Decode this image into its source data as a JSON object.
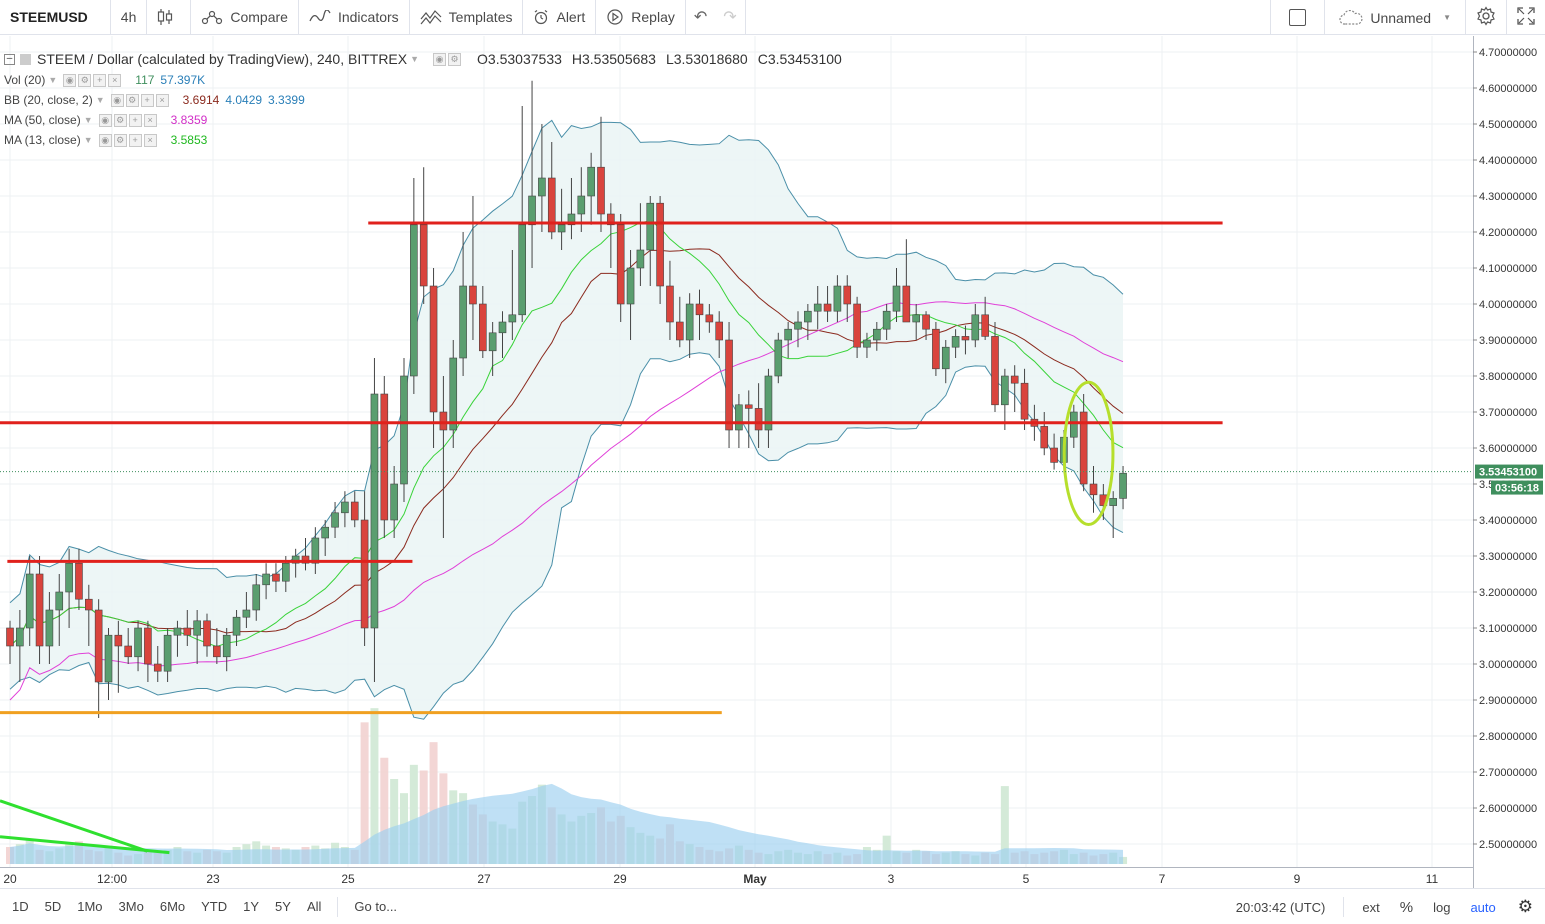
{
  "toolbar": {
    "symbol": "STEEMUSD",
    "interval": "4h",
    "compare": "Compare",
    "indicators": "Indicators",
    "templates": "Templates",
    "alert": "Alert",
    "replay": "Replay",
    "layout_name": "Unnamed"
  },
  "legend": {
    "title": "STEEM / Dollar (calculated by TradingView), 240, BITTREX",
    "ohlc": {
      "o": "O3.53037533",
      "h": "H3.53505683",
      "l": "L3.53018680",
      "c": "C3.53453100"
    },
    "vol": {
      "label": "Vol (20)",
      "v1": "117",
      "v2": "57.397K"
    },
    "bb": {
      "label": "BB (20, close, 2)",
      "v1": "3.6914",
      "v2": "4.0429",
      "v3": "3.3399"
    },
    "ma50": {
      "label": "MA (50, close)",
      "v1": "3.8359"
    },
    "ma13": {
      "label": "MA (13, close)",
      "v1": "3.5853"
    }
  },
  "colors": {
    "up": "#5a9e6f",
    "down": "#d9443d",
    "bb_fill": "#eaf4f4",
    "bb_line": "#4a8fa8",
    "ma20": "#8b2a1e",
    "ma50": "#e040d8",
    "ma13": "#39d339",
    "hline_red": "#e0211c",
    "hline_orange": "#f0a020",
    "trend_green": "#2fe02f",
    "ellipse": "#b6df2c",
    "price_tag": "#3f8f5e"
  },
  "chart_data": {
    "type": "candlestick",
    "price_range": [
      2.43,
      4.72
    ],
    "price_ticks": [
      "4.70000000",
      "4.60000000",
      "4.50000000",
      "4.40000000",
      "4.30000000",
      "4.20000000",
      "4.10000000",
      "4.00000000",
      "3.90000000",
      "3.80000000",
      "3.70000000",
      "3.60000000",
      "3.50000000",
      "3.40000000",
      "3.30000000",
      "3.20000000",
      "3.10000000",
      "3.00000000",
      "2.90000000",
      "2.80000000",
      "2.70000000",
      "2.60000000",
      "2.50000000"
    ],
    "x_labels": [
      "20",
      "12:00",
      "23",
      "25",
      "27",
      "29",
      "May",
      "3",
      "5",
      "7",
      "9",
      "11"
    ],
    "last_price": "3.53453100",
    "countdown": "03:56:18",
    "candles": [
      [
        3.1,
        3.12,
        3.0,
        3.05
      ],
      [
        3.05,
        3.15,
        2.95,
        3.1
      ],
      [
        3.1,
        3.3,
        3.05,
        3.25
      ],
      [
        3.25,
        3.3,
        3.0,
        3.05
      ],
      [
        3.05,
        3.2,
        3.0,
        3.15
      ],
      [
        3.15,
        3.25,
        3.05,
        3.2
      ],
      [
        3.2,
        3.32,
        3.1,
        3.28
      ],
      [
        3.28,
        3.32,
        3.15,
        3.18
      ],
      [
        3.18,
        3.22,
        3.05,
        3.15
      ],
      [
        3.15,
        3.18,
        2.85,
        2.95
      ],
      [
        2.95,
        3.1,
        2.9,
        3.08
      ],
      [
        3.08,
        3.12,
        2.92,
        3.05
      ],
      [
        3.05,
        3.1,
        3.0,
        3.02
      ],
      [
        3.02,
        3.12,
        2.98,
        3.1
      ],
      [
        3.1,
        3.12,
        2.95,
        3.0
      ],
      [
        3.0,
        3.05,
        2.95,
        2.98
      ],
      [
        2.98,
        3.1,
        2.95,
        3.08
      ],
      [
        3.08,
        3.12,
        3.02,
        3.1
      ],
      [
        3.1,
        3.15,
        3.05,
        3.08
      ],
      [
        3.08,
        3.15,
        3.0,
        3.12
      ],
      [
        3.12,
        3.14,
        3.02,
        3.05
      ],
      [
        3.05,
        3.1,
        3.0,
        3.02
      ],
      [
        3.02,
        3.1,
        2.98,
        3.08
      ],
      [
        3.08,
        3.15,
        3.05,
        3.13
      ],
      [
        3.13,
        3.2,
        3.1,
        3.15
      ],
      [
        3.15,
        3.25,
        3.12,
        3.22
      ],
      [
        3.22,
        3.28,
        3.18,
        3.25
      ],
      [
        3.25,
        3.28,
        3.2,
        3.23
      ],
      [
        3.23,
        3.3,
        3.2,
        3.28
      ],
      [
        3.28,
        3.32,
        3.24,
        3.3
      ],
      [
        3.3,
        3.35,
        3.26,
        3.28
      ],
      [
        3.28,
        3.38,
        3.25,
        3.35
      ],
      [
        3.35,
        3.4,
        3.3,
        3.38
      ],
      [
        3.38,
        3.45,
        3.35,
        3.42
      ],
      [
        3.42,
        3.48,
        3.38,
        3.45
      ],
      [
        3.45,
        3.48,
        3.38,
        3.4
      ],
      [
        3.4,
        3.48,
        3.05,
        3.1
      ],
      [
        3.1,
        3.85,
        2.95,
        3.75
      ],
      [
        3.75,
        3.8,
        3.35,
        3.4
      ],
      [
        3.4,
        3.55,
        3.35,
        3.5
      ],
      [
        3.5,
        3.85,
        3.45,
        3.8
      ],
      [
        3.8,
        4.35,
        3.75,
        4.22
      ],
      [
        4.22,
        4.38,
        4.0,
        4.05
      ],
      [
        4.05,
        4.1,
        3.6,
        3.7
      ],
      [
        3.7,
        3.8,
        3.35,
        3.65
      ],
      [
        3.65,
        3.9,
        3.6,
        3.85
      ],
      [
        3.85,
        4.2,
        3.8,
        4.05
      ],
      [
        4.05,
        4.3,
        3.9,
        4.0
      ],
      [
        4.0,
        4.05,
        3.85,
        3.87
      ],
      [
        3.87,
        3.95,
        3.8,
        3.92
      ],
      [
        3.92,
        3.98,
        3.85,
        3.95
      ],
      [
        3.95,
        4.15,
        3.9,
        3.97
      ],
      [
        3.97,
        4.55,
        3.95,
        4.22
      ],
      [
        4.22,
        4.62,
        4.1,
        4.3
      ],
      [
        4.3,
        4.5,
        4.2,
        4.35
      ],
      [
        4.35,
        4.45,
        4.18,
        4.2
      ],
      [
        4.2,
        4.32,
        4.15,
        4.22
      ],
      [
        4.22,
        4.35,
        4.18,
        4.25
      ],
      [
        4.25,
        4.38,
        4.2,
        4.3
      ],
      [
        4.3,
        4.42,
        4.22,
        4.38
      ],
      [
        4.38,
        4.52,
        4.2,
        4.25
      ],
      [
        4.25,
        4.28,
        4.1,
        4.22
      ],
      [
        4.22,
        4.25,
        3.95,
        4.0
      ],
      [
        4.0,
        4.15,
        3.9,
        4.1
      ],
      [
        4.1,
        4.28,
        4.05,
        4.15
      ],
      [
        4.15,
        4.3,
        4.05,
        4.28
      ],
      [
        4.28,
        4.3,
        4.0,
        4.05
      ],
      [
        4.05,
        4.12,
        3.9,
        3.95
      ],
      [
        3.95,
        4.02,
        3.88,
        3.9
      ],
      [
        3.9,
        4.03,
        3.85,
        4.0
      ],
      [
        4.0,
        4.04,
        3.9,
        3.97
      ],
      [
        3.97,
        4.0,
        3.92,
        3.95
      ],
      [
        3.95,
        3.98,
        3.85,
        3.9
      ],
      [
        3.9,
        3.95,
        3.6,
        3.65
      ],
      [
        3.65,
        3.75,
        3.6,
        3.72
      ],
      [
        3.72,
        3.76,
        3.6,
        3.71
      ],
      [
        3.71,
        3.78,
        3.6,
        3.65
      ],
      [
        3.65,
        3.82,
        3.6,
        3.8
      ],
      [
        3.8,
        3.92,
        3.78,
        3.9
      ],
      [
        3.9,
        3.95,
        3.85,
        3.93
      ],
      [
        3.93,
        3.98,
        3.88,
        3.95
      ],
      [
        3.95,
        4.0,
        3.9,
        3.98
      ],
      [
        3.98,
        4.05,
        3.93,
        4.0
      ],
      [
        4.0,
        4.05,
        3.95,
        3.98
      ],
      [
        3.98,
        4.08,
        3.95,
        4.05
      ],
      [
        4.05,
        4.08,
        3.95,
        4.0
      ],
      [
        4.0,
        4.02,
        3.85,
        3.88
      ],
      [
        3.88,
        3.92,
        3.85,
        3.9
      ],
      [
        3.9,
        3.95,
        3.87,
        3.93
      ],
      [
        3.93,
        4.0,
        3.9,
        3.98
      ],
      [
        3.98,
        4.1,
        3.95,
        4.05
      ],
      [
        4.05,
        4.18,
        3.95,
        3.95
      ],
      [
        3.95,
        4.0,
        3.9,
        3.97
      ],
      [
        3.97,
        3.98,
        3.9,
        3.93
      ],
      [
        3.93,
        3.95,
        3.8,
        3.82
      ],
      [
        3.82,
        3.9,
        3.78,
        3.88
      ],
      [
        3.88,
        3.93,
        3.85,
        3.91
      ],
      [
        3.91,
        3.94,
        3.86,
        3.9
      ],
      [
        3.9,
        4.0,
        3.88,
        3.97
      ],
      [
        3.97,
        4.02,
        3.9,
        3.91
      ],
      [
        3.91,
        3.95,
        3.7,
        3.72
      ],
      [
        3.72,
        3.82,
        3.65,
        3.8
      ],
      [
        3.8,
        3.83,
        3.7,
        3.78
      ],
      [
        3.78,
        3.82,
        3.65,
        3.68
      ],
      [
        3.68,
        3.72,
        3.62,
        3.66
      ],
      [
        3.66,
        3.7,
        3.58,
        3.6
      ],
      [
        3.6,
        3.64,
        3.54,
        3.56
      ],
      [
        3.56,
        3.65,
        3.53,
        3.63
      ],
      [
        3.63,
        3.72,
        3.6,
        3.7
      ],
      [
        3.7,
        3.75,
        3.48,
        3.5
      ],
      [
        3.5,
        3.55,
        3.42,
        3.47
      ],
      [
        3.47,
        3.5,
        3.4,
        3.44
      ],
      [
        3.44,
        3.48,
        3.35,
        3.46
      ],
      [
        3.46,
        3.55,
        3.43,
        3.53
      ]
    ],
    "volume_range": [
      0,
      120
    ],
    "volume": [
      12,
      14,
      18,
      10,
      9,
      11,
      15,
      16,
      10,
      9,
      13,
      8,
      6,
      7,
      9,
      8,
      10,
      12,
      9,
      8,
      10,
      9,
      8,
      12,
      14,
      16,
      13,
      12,
      11,
      10,
      12,
      13,
      11,
      15,
      12,
      10,
      100,
      110,
      75,
      60,
      50,
      70,
      66,
      86,
      64,
      52,
      50,
      42,
      35,
      30,
      28,
      25,
      44,
      48,
      56,
      40,
      35,
      30,
      34,
      36,
      40,
      30,
      34,
      26,
      22,
      20,
      18,
      28,
      16,
      14,
      12,
      10,
      9,
      11,
      13,
      10,
      8,
      7,
      9,
      10,
      8,
      7,
      9,
      7,
      8,
      6,
      7,
      12,
      10,
      20,
      9,
      8,
      10,
      9,
      7,
      8,
      9,
      7,
      6,
      8,
      7,
      55,
      8,
      9,
      7,
      8,
      9,
      10,
      7,
      8,
      6,
      7,
      8,
      5,
      7
    ],
    "hlines": [
      {
        "price": 4.225,
        "x_from": 0.25,
        "x_to": 0.83,
        "color": "red"
      },
      {
        "price": 3.67,
        "x_from": 0.0,
        "x_to": 0.83,
        "color": "red"
      },
      {
        "price": 3.285,
        "x_from": 0.005,
        "x_to": 0.28,
        "color": "red"
      },
      {
        "price": 2.865,
        "x_from": 0.0,
        "x_to": 0.49,
        "color": "orange"
      }
    ],
    "trendlines": [
      {
        "price_from": 2.62,
        "price_to": 2.48,
        "x_from": 0.0,
        "x_to": 0.1
      },
      {
        "price_from": 2.52,
        "price_to": 2.476,
        "x_from": 0.0,
        "x_to": 0.115
      }
    ],
    "ellipse": {
      "candle_center": 109.5,
      "price": 3.585,
      "candle_width": 2.6,
      "price_height": 0.395
    }
  },
  "bottom": {
    "ranges": [
      "1D",
      "5D",
      "1Mo",
      "3Mo",
      "6Mo",
      "YTD",
      "1Y",
      "5Y",
      "All"
    ],
    "goto": "Go to...",
    "time": "20:03:42 (UTC)",
    "ext": "ext",
    "pct": "%",
    "log": "log",
    "auto": "auto"
  }
}
